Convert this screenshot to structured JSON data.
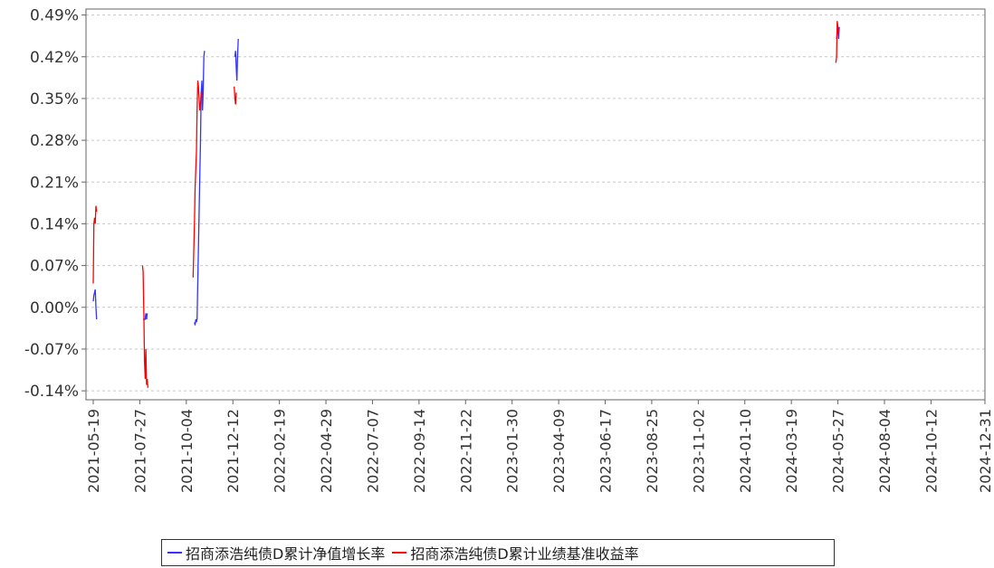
{
  "chart_data": {
    "type": "line",
    "title": "",
    "xlabel": "",
    "ylabel": "",
    "ylim": [
      -0.155,
      0.5
    ],
    "y_ticks": [
      "0.49%",
      "0.42%",
      "0.35%",
      "0.28%",
      "0.21%",
      "0.14%",
      "0.07%",
      "0.00%",
      "-0.07%",
      "-0.14%"
    ],
    "y_tick_values": [
      0.49,
      0.42,
      0.35,
      0.28,
      0.21,
      0.14,
      0.07,
      0.0,
      -0.07,
      -0.14
    ],
    "x_ticks": [
      "2021-05-19",
      "2021-07-27",
      "2021-10-04",
      "2021-12-12",
      "2022-02-19",
      "2022-04-29",
      "2022-07-07",
      "2022-09-14",
      "2022-11-22",
      "2023-01-30",
      "2023-04-09",
      "2023-06-17",
      "2023-08-25",
      "2023-11-02",
      "2024-01-10",
      "2024-03-19",
      "2024-05-27",
      "2024-08-04",
      "2024-10-12",
      "2024-12-31"
    ],
    "grid": true,
    "legend_position": "bottom",
    "series": [
      {
        "name": "招商添浩纯债D累计净值增长率",
        "color": "#3333ff",
        "segments": [
          [
            [
              "2021-05-19",
              0.01
            ],
            [
              "2021-05-20",
              0.02
            ],
            [
              "2021-05-21",
              0.025
            ],
            [
              "2021-05-22",
              0.03
            ],
            [
              "2021-05-23",
              0.0
            ],
            [
              "2021-05-24",
              -0.02
            ]
          ],
          [
            [
              "2021-08-01",
              -0.02
            ],
            [
              "2021-08-03",
              -0.02
            ],
            [
              "2021-08-04",
              -0.02
            ],
            [
              "2021-08-05",
              -0.01
            ],
            [
              "2021-08-06",
              -0.02
            ],
            [
              "2021-08-07",
              -0.01
            ]
          ],
          [
            [
              "2021-10-16",
              -0.025
            ],
            [
              "2021-10-17",
              -0.03
            ],
            [
              "2021-10-18",
              -0.02
            ],
            [
              "2021-10-19",
              -0.025
            ],
            [
              "2021-10-20",
              -0.02
            ],
            [
              "2021-10-22",
              0.1
            ],
            [
              "2021-10-24",
              0.22
            ],
            [
              "2021-10-25",
              0.28
            ],
            [
              "2021-10-26",
              0.36
            ],
            [
              "2021-10-27",
              0.38
            ],
            [
              "2021-10-28",
              0.33
            ],
            [
              "2021-10-29",
              0.36
            ],
            [
              "2021-10-30",
              0.42
            ],
            [
              "2021-10-31",
              0.43
            ]
          ],
          [
            [
              "2021-12-15",
              0.42
            ],
            [
              "2021-12-16",
              0.43
            ],
            [
              "2021-12-17",
              0.4
            ],
            [
              "2021-12-18",
              0.38
            ],
            [
              "2021-12-19",
              0.42
            ],
            [
              "2021-12-20",
              0.45
            ]
          ],
          [
            [
              "2024-05-25",
              0.45
            ],
            [
              "2024-05-26",
              0.46
            ],
            [
              "2024-05-27",
              0.47
            ],
            [
              "2024-05-28",
              0.45
            ],
            [
              "2024-05-29",
              0.47
            ]
          ]
        ]
      },
      {
        "name": "招商添浩纯债D累计业绩基准收益率",
        "color": "#ff0000",
        "segments": [
          [
            [
              "2021-05-19",
              0.04
            ],
            [
              "2021-05-20",
              0.14
            ],
            [
              "2021-05-21",
              0.15
            ],
            [
              "2021-05-22",
              0.14
            ],
            [
              "2021-05-23",
              0.17
            ],
            [
              "2021-05-24",
              0.16
            ]
          ],
          [
            [
              "2021-07-31",
              0.07
            ],
            [
              "2021-08-01",
              0.06
            ],
            [
              "2021-08-02",
              -0.01
            ],
            [
              "2021-08-03",
              -0.09
            ],
            [
              "2021-08-04",
              -0.12
            ],
            [
              "2021-08-05",
              -0.07
            ],
            [
              "2021-08-06",
              -0.13
            ],
            [
              "2021-08-07",
              -0.12
            ],
            [
              "2021-08-08",
              -0.135
            ]
          ],
          [
            [
              "2021-10-14",
              0.05
            ],
            [
              "2021-10-16",
              0.14
            ],
            [
              "2021-10-17",
              0.2
            ],
            [
              "2021-10-19",
              0.26
            ],
            [
              "2021-10-20",
              0.33
            ],
            [
              "2021-10-21",
              0.38
            ],
            [
              "2021-10-22",
              0.37
            ],
            [
              "2021-10-24",
              0.33
            ],
            [
              "2021-10-25",
              0.34
            ],
            [
              "2021-10-26",
              0.36
            ]
          ],
          [
            [
              "2021-12-14",
              0.37
            ],
            [
              "2021-12-15",
              0.35
            ],
            [
              "2021-12-16",
              0.34
            ],
            [
              "2021-12-17",
              0.36
            ]
          ],
          [
            [
              "2024-05-24",
              0.41
            ],
            [
              "2024-05-25",
              0.42
            ],
            [
              "2024-05-26",
              0.48
            ],
            [
              "2024-05-27",
              0.47
            ],
            [
              "2024-05-28",
              0.46
            ]
          ]
        ]
      }
    ]
  }
}
